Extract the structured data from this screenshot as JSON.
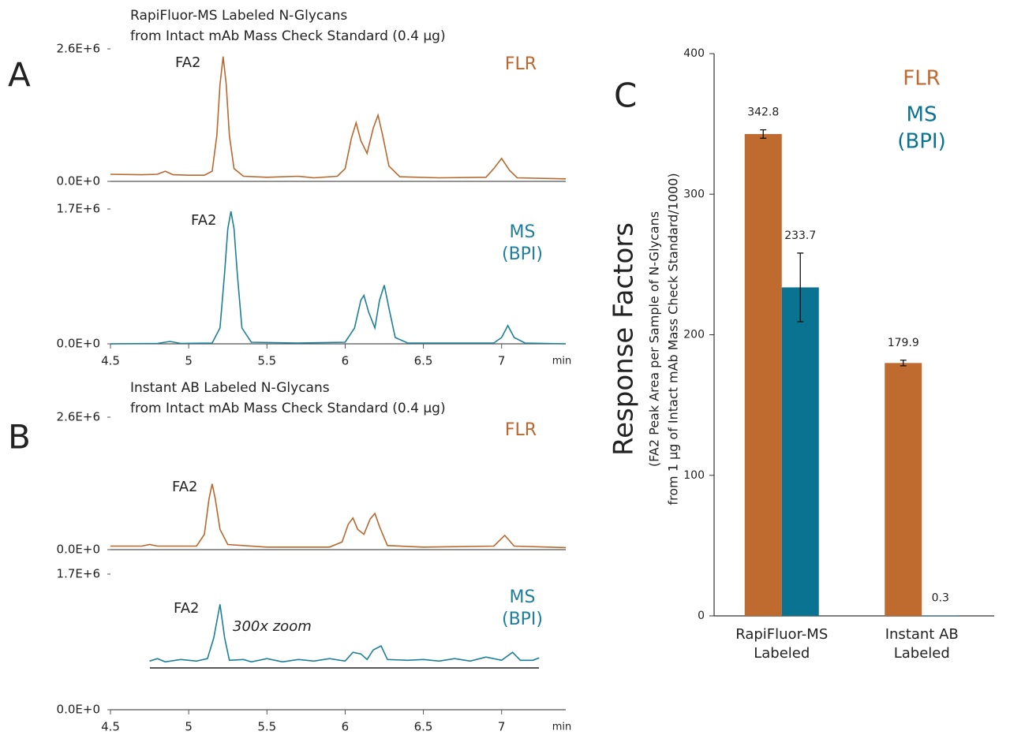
{
  "chart_data": [
    {
      "type": "line",
      "label": "A",
      "title": [
        "RapiFluor-MS Labeled N-Glycans",
        "from Intact mAb Mass Check Standard (0.4 µg)"
      ],
      "trace_label": [
        "FLR"
      ],
      "annotations": [
        "FA2"
      ],
      "color": "#b8682e",
      "xlim": [
        4.5,
        7.41
      ],
      "ylim": [
        0,
        2600000.0
      ],
      "yticks": [
        {
          "value": 0,
          "label": "0.0E+0"
        },
        {
          "value": 2600000.0,
          "label": "2.6E+6"
        }
      ],
      "x": [
        4.5,
        4.7,
        4.8,
        4.85,
        4.9,
        5.0,
        5.1,
        5.15,
        5.18,
        5.2,
        5.22,
        5.24,
        5.26,
        5.29,
        5.35,
        5.5,
        5.7,
        5.8,
        5.95,
        6.0,
        6.04,
        6.07,
        6.1,
        6.14,
        6.18,
        6.21,
        6.24,
        6.28,
        6.35,
        6.6,
        6.9,
        6.95,
        7.0,
        7.05,
        7.1,
        7.41
      ],
      "values": [
        140000.0,
        130000.0,
        140000.0,
        200000.0,
        130000.0,
        120000.0,
        120000.0,
        200000.0,
        900000.0,
        1900000.0,
        2450000.0,
        1900000.0,
        900000.0,
        250000.0,
        100000.0,
        80000.0,
        100000.0,
        70000.0,
        100000.0,
        250000.0,
        850000.0,
        1150000.0,
        800000.0,
        550000.0,
        1050000.0,
        1300000.0,
        900000.0,
        300000.0,
        90000.0,
        70000.0,
        80000.0,
        250000.0,
        450000.0,
        220000.0,
        70000.0,
        50000.0
      ]
    },
    {
      "type": "line",
      "trace_label": [
        "MS",
        "(BPI)"
      ],
      "annotations": [
        "FA2"
      ],
      "color": "#1d7f99",
      "xlim": [
        4.5,
        7.41
      ],
      "ylim": [
        0,
        1700000.0
      ],
      "yticks": [
        {
          "value": 0,
          "label": "0.0E+0"
        },
        {
          "value": 1700000.0,
          "label": "1.7E+6"
        }
      ],
      "xticks": [
        4.5,
        5,
        5.5,
        6,
        6.5,
        7
      ],
      "xlabel": "min",
      "x": [
        4.5,
        4.8,
        4.88,
        4.95,
        5.15,
        5.2,
        5.23,
        5.25,
        5.27,
        5.29,
        5.31,
        5.34,
        5.4,
        5.7,
        6.0,
        6.06,
        6.1,
        6.12,
        6.15,
        6.19,
        6.22,
        6.25,
        6.28,
        6.32,
        6.4,
        6.95,
        7.0,
        7.04,
        7.08,
        7.15,
        7.41
      ],
      "values": [
        0,
        5000.0,
        30000.0,
        5000.0,
        10000.0,
        200000.0,
        900000.0,
        1450000.0,
        1670000.0,
        1450000.0,
        900000.0,
        200000.0,
        20000.0,
        10000.0,
        20000.0,
        200000.0,
        550000.0,
        610000.0,
        400000.0,
        200000.0,
        550000.0,
        740000.0,
        450000.0,
        80000.0,
        10000.0,
        10000.0,
        80000.0,
        230000.0,
        80000.0,
        10000.0,
        0
      ]
    },
    {
      "type": "line",
      "label": "B",
      "title": [
        "Instant AB Labeled N-Glycans",
        "from Intact mAb Mass Check Standard (0.4 µg)"
      ],
      "trace_label": [
        "FLR"
      ],
      "annotations": [
        "FA2"
      ],
      "color": "#b8682e",
      "xlim": [
        4.5,
        7.41
      ],
      "ylim": [
        0,
        2600000.0
      ],
      "yticks": [
        {
          "value": 0,
          "label": "0.0E+0"
        },
        {
          "value": 2600000.0,
          "label": "2.6E+6"
        }
      ],
      "x": [
        4.5,
        4.7,
        4.75,
        4.8,
        5.05,
        5.1,
        5.13,
        5.15,
        5.17,
        5.2,
        5.25,
        5.5,
        5.9,
        5.98,
        6.02,
        6.05,
        6.08,
        6.12,
        6.16,
        6.19,
        6.22,
        6.27,
        6.5,
        6.95,
        7.02,
        7.08,
        7.41
      ],
      "values": [
        70000.0,
        70000.0,
        100000.0,
        70000.0,
        70000.0,
        300000.0,
        1000000.0,
        1290000.0,
        1000000.0,
        400000.0,
        100000.0,
        50000.0,
        50000.0,
        150000.0,
        500000.0,
        620000.0,
        400000.0,
        300000.0,
        600000.0,
        710000.0,
        450000.0,
        80000.0,
        50000.0,
        70000.0,
        280000.0,
        70000.0,
        40000.0
      ]
    },
    {
      "type": "line",
      "trace_label": [
        "MS",
        "(BPI)"
      ],
      "annotations": [
        "FA2",
        "300x zoom"
      ],
      "color": "#1d7f99",
      "xlim": [
        4.5,
        7.41
      ],
      "ylim": [
        0,
        1700000.0
      ],
      "yticks": [
        {
          "value": 0,
          "label": "0.0E+0"
        },
        {
          "value": 1700000.0,
          "label": "1.7E+6"
        }
      ],
      "xticks": [
        4.5,
        5,
        5.5,
        6,
        6.5,
        7
      ],
      "xlabel": "min",
      "x": [
        4.75,
        4.8,
        4.85,
        4.95,
        5.05,
        5.12,
        5.16,
        5.2,
        5.23,
        5.26,
        5.35,
        5.4,
        5.5,
        5.6,
        5.7,
        5.8,
        5.9,
        6.0,
        6.05,
        6.1,
        6.14,
        6.18,
        6.23,
        6.27,
        6.4,
        6.5,
        6.6,
        6.7,
        6.8,
        6.9,
        7.0,
        7.07,
        7.12,
        7.2,
        7.24
      ],
      "values": [
        610000.0,
        640000.0,
        600000.0,
        630000.0,
        610000.0,
        640000.0,
        900000.0,
        1320000.0,
        900000.0,
        620000.0,
        630000.0,
        600000.0,
        640000.0,
        600000.0,
        630000.0,
        610000.0,
        640000.0,
        610000.0,
        720000.0,
        700000.0,
        630000.0,
        750000.0,
        800000.0,
        630000.0,
        620000.0,
        630000.0,
        610000.0,
        640000.0,
        610000.0,
        660000.0,
        620000.0,
        720000.0,
        620000.0,
        620000.0,
        650000.0
      ]
    },
    {
      "type": "bar",
      "label": "C",
      "ylabel": "Response Factors",
      "ylabel_sub": [
        "(FA2 Peak Area per Sample of N-Glycans",
        "from 1 µg of Intact mAb Mass Check Standard/1000)"
      ],
      "categories": [
        [
          "RapiFluor-MS",
          "Labeled"
        ],
        [
          "Instant AB",
          "Labeled"
        ]
      ],
      "ylim": [
        0,
        400
      ],
      "yticks": [
        0,
        100,
        200,
        300,
        400
      ],
      "series": [
        {
          "name": [
            "FLR"
          ],
          "color": "#bf6a2e",
          "values": [
            342.8,
            179.9
          ],
          "errors": [
            3,
            2
          ]
        },
        {
          "name": [
            "MS",
            "(BPI)"
          ],
          "color": "#0a7391",
          "values": [
            233.7,
            0.3
          ],
          "errors": [
            24.4,
            0
          ]
        }
      ]
    }
  ]
}
